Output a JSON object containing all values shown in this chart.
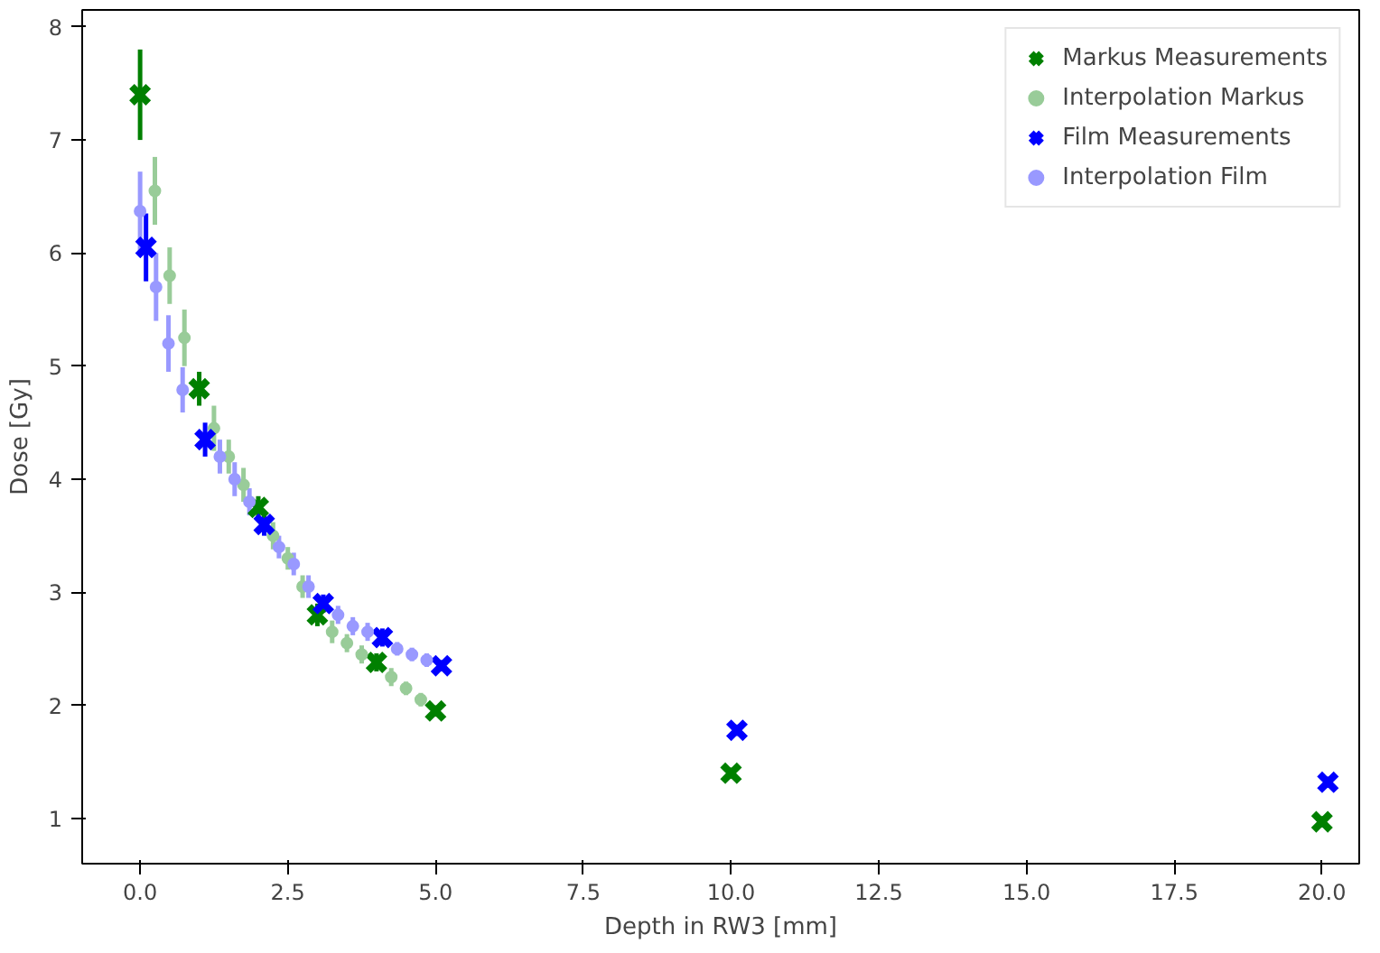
{
  "chart_data": {
    "type": "scatter",
    "xlabel": "Depth in RW3 [mm]",
    "ylabel": "Dose [Gy]",
    "xlim": [
      -0.98,
      20.63
    ],
    "ylim": [
      0.6,
      8.15
    ],
    "xticks": [
      {
        "value": 0,
        "label": "0.0"
      },
      {
        "value": 2.5,
        "label": "2.5"
      },
      {
        "value": 5,
        "label": "5.0"
      },
      {
        "value": 7.5,
        "label": "7.5"
      },
      {
        "value": 10,
        "label": "10.0"
      },
      {
        "value": 12.5,
        "label": "12.5"
      },
      {
        "value": 15,
        "label": "15.0"
      },
      {
        "value": 17.5,
        "label": "17.5"
      },
      {
        "value": 20,
        "label": "20.0"
      }
    ],
    "yticks": [
      1,
      2,
      3,
      4,
      5,
      6,
      7,
      8
    ],
    "grid": false,
    "legend": "top right",
    "series": [
      {
        "name": "Markus Measurements",
        "color": "#008000",
        "marker": "cross",
        "x": [
          0,
          1,
          2,
          3,
          4,
          5,
          10,
          20
        ],
        "values": [
          7.4,
          4.8,
          3.75,
          2.8,
          2.38,
          1.95,
          1.4,
          0.97
        ],
        "errors": [
          0.4,
          0.15,
          0.1,
          0.1,
          0.08,
          0.05,
          0.05,
          0.05
        ]
      },
      {
        "name": "Interpolation Markus",
        "color": "#99cc99",
        "marker": "circle",
        "x": [
          0.25,
          0.5,
          0.75,
          1.25,
          1.5,
          1.75,
          2.25,
          2.5,
          2.75,
          3.25,
          3.5,
          3.75,
          4.25,
          4.5,
          4.75
        ],
        "values": [
          6.55,
          5.8,
          5.25,
          4.45,
          4.2,
          3.95,
          3.5,
          3.3,
          3.05,
          2.65,
          2.55,
          2.45,
          2.25,
          2.15,
          2.05
        ],
        "errors": [
          0.3,
          0.25,
          0.25,
          0.2,
          0.15,
          0.15,
          0.12,
          0.1,
          0.1,
          0.1,
          0.08,
          0.08,
          0.08,
          0.06,
          0.06
        ]
      },
      {
        "name": "Film Measurements",
        "color": "#0000ff",
        "marker": "cross",
        "x": [
          0.1,
          1.1,
          2.1,
          3.1,
          4.1,
          5.1,
          10.1,
          20.1
        ],
        "values": [
          6.05,
          4.35,
          3.6,
          2.9,
          2.6,
          2.35,
          1.78,
          1.32
        ],
        "errors": [
          0.3,
          0.15,
          0.1,
          0.08,
          0.08,
          0.05,
          0.05,
          0.05
        ]
      },
      {
        "name": "Interpolation Film",
        "color": "#9999ff",
        "marker": "circle",
        "x": [
          0.0,
          0.27,
          0.48,
          0.72,
          1.35,
          1.6,
          1.85,
          2.35,
          2.6,
          2.85,
          3.35,
          3.6,
          3.85,
          4.35,
          4.6,
          4.85
        ],
        "values": [
          6.37,
          5.7,
          5.2,
          4.79,
          4.2,
          4.0,
          3.8,
          3.4,
          3.25,
          3.05,
          2.8,
          2.7,
          2.65,
          2.5,
          2.45,
          2.4
        ],
        "errors": [
          0.35,
          0.3,
          0.25,
          0.2,
          0.15,
          0.15,
          0.12,
          0.1,
          0.1,
          0.1,
          0.08,
          0.08,
          0.08,
          0.06,
          0.06,
          0.06
        ]
      }
    ]
  }
}
